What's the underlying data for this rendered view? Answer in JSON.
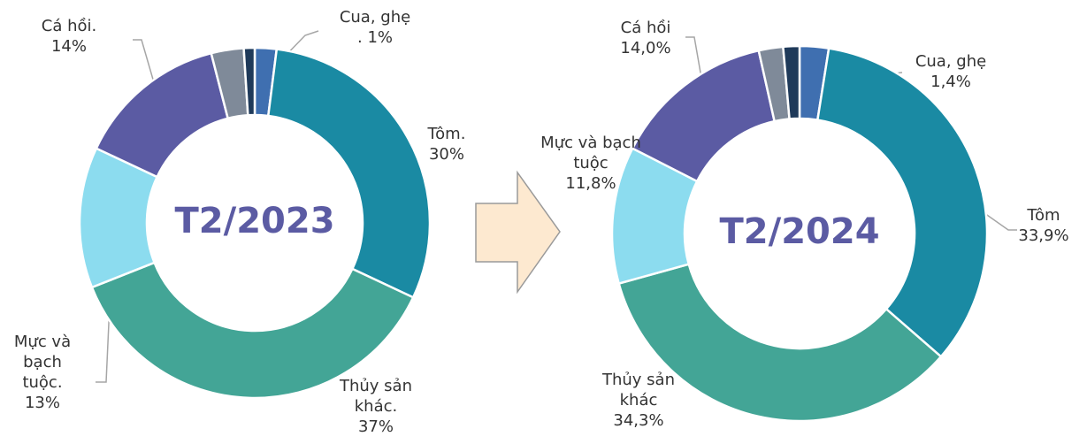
{
  "chart_data": [
    {
      "type": "pie",
      "title": "T2/2023",
      "categories": [
        null,
        "Tôm.",
        "Thủy sản khác.",
        "Mực và bạch tuộc.",
        "Cá hồi.",
        null,
        "Cua, ghẹ"
      ],
      "values": [
        2,
        30,
        37,
        13,
        14,
        3,
        1
      ],
      "value_labels": [
        null,
        "30%",
        "37%",
        "13%",
        "14%",
        null,
        ". 1%"
      ],
      "colors": [
        "#3f6fb0",
        "#1a8aa3",
        "#43a596",
        "#8cdcef",
        "#5b5ba3",
        "#7f8a99",
        "#1f3a5a"
      ]
    },
    {
      "type": "pie",
      "title": "T2/2024",
      "categories": [
        null,
        "Tôm",
        "Thủy sản khác",
        "Mực và bạch tuộc",
        "Cá hồi",
        null,
        "Cua, ghẹ"
      ],
      "values": [
        2.5,
        33.9,
        34.3,
        11.8,
        14.0,
        2.1,
        1.4
      ],
      "value_labels": [
        null,
        "33,9%",
        "34,3%",
        "11,8%",
        "14,0%",
        null,
        "1,4%"
      ],
      "colors": [
        "#3f6fb0",
        "#1a8aa3",
        "#43a596",
        "#8cdcef",
        "#5b5ba3",
        "#7f8a99",
        "#1f3a5a"
      ]
    }
  ]
}
